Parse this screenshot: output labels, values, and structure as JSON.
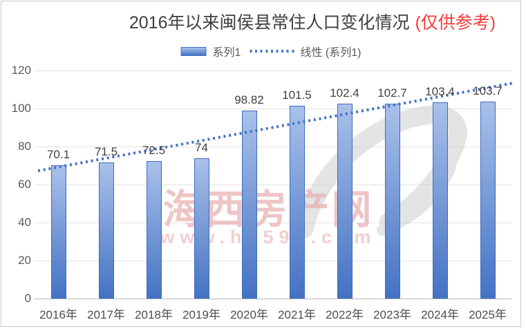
{
  "header": {
    "title": "2016年以来闽侯县常住人口变化情况",
    "title_note": "(仅供参考)",
    "title_note_color": "#fb3b3b"
  },
  "legend": {
    "series_label": "系列1",
    "trend_label": "线性 (系列1)"
  },
  "watermark": {
    "brand": "海西房产网",
    "url": "www.h0591.com",
    "logo": "house-swoosh-logo",
    "text_color": "#e9b2b2"
  },
  "chart_data": {
    "type": "bar",
    "title": "2016年以来闽侯县常住人口变化情况 (仅供参考)",
    "categories": [
      "2016年",
      "2017年",
      "2018年",
      "2019年",
      "2020年",
      "2021年",
      "2022年",
      "2023年",
      "2024年",
      "2025年"
    ],
    "series": [
      {
        "name": "系列1",
        "values": [
          70.1,
          71.5,
          72.5,
          74,
          98.82,
          101.5,
          102.4,
          102.7,
          103.4,
          103.7
        ]
      }
    ],
    "value_labels": [
      "70.1",
      "71.5",
      "72.5",
      "74",
      "98.82",
      "101.5",
      "102.4",
      "102.7",
      "103.4",
      "103.7"
    ],
    "trendline": {
      "name": "线性 (系列1)",
      "fit": "linear",
      "style": "dotted",
      "color": "#4472c4"
    },
    "yticks": [
      0,
      20,
      40,
      60,
      80,
      100,
      120
    ],
    "ylim": [
      0,
      120
    ],
    "xlabel": "",
    "ylabel": "",
    "grid": true,
    "legend_position": "top",
    "colors": {
      "bar_top": "#a9c1ea",
      "bar_bottom": "#4472c4",
      "bar_border": "#3f6bbb",
      "gridline": "#e3e3e3",
      "axis_text": "#595959"
    }
  }
}
